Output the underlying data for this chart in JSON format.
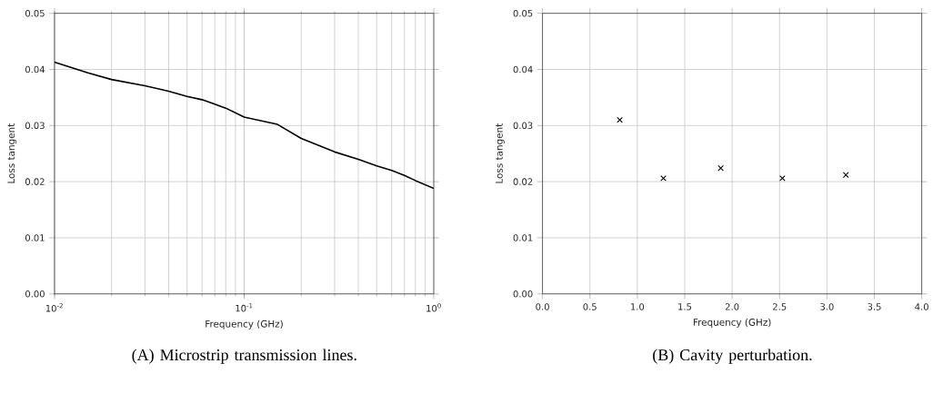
{
  "chart_data": [
    {
      "type": "line",
      "title": "(A) Microstrip transmission lines.",
      "xlabel": "Frequency (GHz)",
      "ylabel": "Loss tangent",
      "log": "x",
      "grid": true,
      "marker": "none",
      "line_style": "solid",
      "xlim": [
        0.01,
        1
      ],
      "ylim": [
        0,
        0.05
      ],
      "xticks": [
        {
          "value": 0.01,
          "label": "10$^{-2}$"
        },
        {
          "value": 0.1,
          "label": "10$^{-1}$"
        },
        {
          "value": 1,
          "label": "10$^{0}$"
        }
      ],
      "yticks": [
        {
          "value": 0,
          "label": "0.00"
        },
        0.01,
        0.02,
        0.03,
        0.04,
        0.05
      ],
      "series": [
        {
          "color": "#000000",
          "x": [
            0.01,
            0.015,
            0.02,
            0.03,
            0.04,
            0.05,
            0.06,
            0.07,
            0.08,
            0.1,
            0.15,
            0.2,
            0.3,
            0.4,
            0.5,
            0.6,
            0.7,
            0.8,
            1.0
          ],
          "values": [
            0.0413,
            0.0394,
            0.0382,
            0.0371,
            0.0361,
            0.0352,
            0.0346,
            0.0338,
            0.0331,
            0.0315,
            0.0302,
            0.0277,
            0.0253,
            0.024,
            0.0228,
            0.022,
            0.0211,
            0.0202,
            0.0188
          ]
        }
      ]
    },
    {
      "type": "scatter",
      "title": "(B) Cavity perturbation.",
      "xlabel": "Frequency (GHz)",
      "ylabel": "Loss tangent",
      "grid": true,
      "marker": "cross",
      "xlim": [
        0,
        4
      ],
      "ylim": [
        0,
        0.05
      ],
      "xticks": [
        {
          "value": 0,
          "label": "0.0"
        },
        0.5,
        {
          "value": 1,
          "label": "1.0"
        },
        1.5,
        {
          "value": 2,
          "label": "2.0"
        },
        2.5,
        {
          "value": 3,
          "label": "3.0"
        },
        3.5,
        {
          "value": 4,
          "label": "4.0"
        }
      ],
      "yticks": [
        {
          "value": 0,
          "label": "0.00"
        },
        0.01,
        0.02,
        0.03,
        0.04,
        0.05
      ],
      "series": [
        {
          "color": "#000000",
          "x": [
            0.815,
            1.275,
            1.88,
            2.53,
            3.2
          ],
          "values": [
            0.031,
            0.0206,
            0.0224,
            0.0206,
            0.0212
          ]
        }
      ]
    }
  ]
}
